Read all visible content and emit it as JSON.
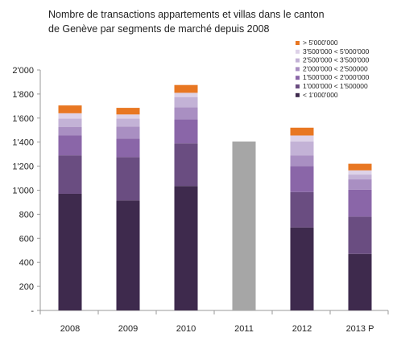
{
  "chart_data": {
    "type": "bar",
    "stacked": true,
    "title_lines": [
      "Nombre de transactions appartements et villas dans le canton",
      "de Genève par segments de marché depuis 2008"
    ],
    "categories": [
      "2008",
      "2009",
      "2010",
      "2011",
      "2012",
      "2013 P"
    ],
    "ylim": [
      0,
      2000
    ],
    "yticks": [
      0,
      200,
      400,
      600,
      800,
      1000,
      1200,
      1400,
      1600,
      1800,
      2000
    ],
    "ytick_labels": [
      "-",
      "200",
      "400",
      "600",
      "800",
      "1'000",
      "1'200",
      "1'400",
      "1'600",
      "1'800",
      "2'000"
    ],
    "legend_position": "top-right",
    "series": [
      {
        "name": "< 1'000'000",
        "color": "#3e2a4d",
        "values": [
          970,
          915,
          1035,
          null,
          690,
          470
        ]
      },
      {
        "name": "1'000'000 < 1'500000",
        "color": "#6a4d81",
        "values": [
          320,
          360,
          355,
          null,
          295,
          310
        ]
      },
      {
        "name": "1'500'000 < 2'000'000",
        "color": "#8a66a8",
        "values": [
          165,
          155,
          200,
          null,
          215,
          225
        ]
      },
      {
        "name": "2'000'000 < 2'500000",
        "color": "#a98fc2",
        "values": [
          70,
          100,
          100,
          null,
          90,
          85
        ]
      },
      {
        "name": "2'500'000 < 3'500'000",
        "color": "#c3b2d6",
        "values": [
          70,
          65,
          85,
          null,
          115,
          40
        ]
      },
      {
        "name": "3'500'000 < 5'000'000",
        "color": "#ddd2e8",
        "values": [
          45,
          35,
          35,
          null,
          50,
          35
        ]
      },
      {
        "name": "> 5'000'000",
        "color": "#e87722",
        "values": [
          65,
          55,
          65,
          null,
          65,
          55
        ]
      }
    ],
    "totals_only": [
      {
        "category": "2011",
        "value": 1405,
        "color": "#a6a6a6"
      }
    ]
  }
}
